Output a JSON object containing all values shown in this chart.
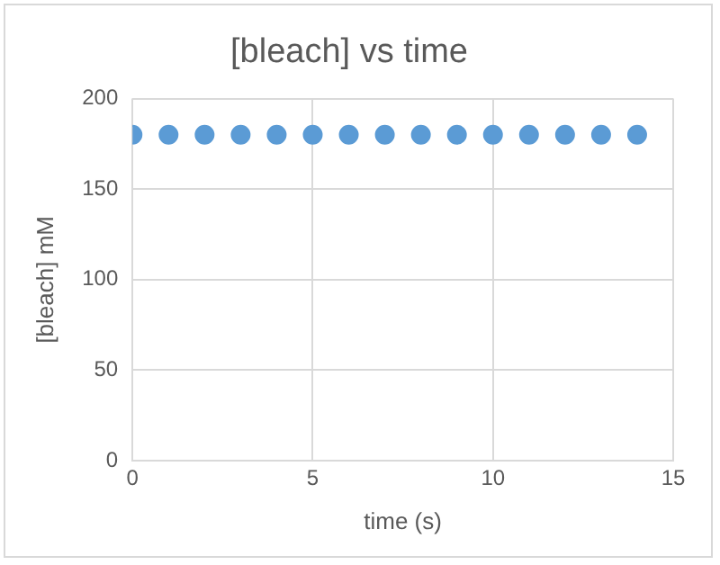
{
  "chart_data": {
    "type": "scatter",
    "title": "[bleach] vs time",
    "xlabel": "time (s)",
    "ylabel": "[bleach] mM",
    "x": [
      0,
      1,
      2,
      3,
      4,
      5,
      6,
      7,
      8,
      9,
      10,
      11,
      12,
      13,
      14
    ],
    "series": [
      {
        "color": "#5b9bd5",
        "values": [
          180,
          180,
          180,
          180,
          180,
          180,
          180,
          180,
          180,
          180,
          180,
          180,
          180,
          180,
          180
        ]
      }
    ],
    "xlim": [
      0,
      15
    ],
    "xticks": [
      0,
      5,
      10,
      15
    ],
    "ylim": [
      0,
      200
    ],
    "yticks": [
      0,
      50,
      100,
      150,
      200
    ],
    "grid": true,
    "legend": false,
    "marker": "circle"
  }
}
